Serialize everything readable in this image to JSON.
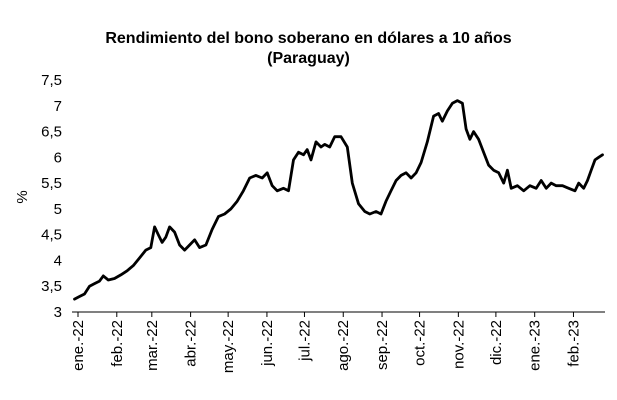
{
  "chart_data": {
    "type": "line",
    "title": "Rendimiento del bono soberano en dólares a 10 años",
    "subtitle": "(Paraguay)",
    "ylabel": "%",
    "ylim": [
      3,
      7.5
    ],
    "yticks": [
      "3",
      "3,5",
      "4",
      "4,5",
      "5",
      "5,5",
      "6",
      "6,5",
      "7",
      "7,5"
    ],
    "xtick_labels": [
      "ene.-22",
      "feb.-22",
      "mar.-22",
      "abr.-22",
      "may.-22",
      "jun.-22",
      "jul.-22",
      "ago.-22",
      "sep.-22",
      "oct.-22",
      "nov.-22",
      "dic.-22",
      "ene.-23",
      "feb.-23"
    ],
    "xlim": [
      "2022-01-01",
      "2023-03-03"
    ],
    "grid": false,
    "legend": "none",
    "series": [
      {
        "color": "#000000",
        "points": [
          [
            "2022-01-03",
            3.25
          ],
          [
            "2022-01-07",
            3.3
          ],
          [
            "2022-01-11",
            3.35
          ],
          [
            "2022-01-15",
            3.5
          ],
          [
            "2022-01-19",
            3.55
          ],
          [
            "2022-01-23",
            3.6
          ],
          [
            "2022-01-26",
            3.7
          ],
          [
            "2022-01-30",
            3.62
          ],
          [
            "2022-02-04",
            3.65
          ],
          [
            "2022-02-09",
            3.72
          ],
          [
            "2022-02-14",
            3.8
          ],
          [
            "2022-02-19",
            3.9
          ],
          [
            "2022-02-24",
            4.05
          ],
          [
            "2022-03-01",
            4.2
          ],
          [
            "2022-03-05",
            4.25
          ],
          [
            "2022-03-08",
            4.65
          ],
          [
            "2022-03-11",
            4.5
          ],
          [
            "2022-03-14",
            4.35
          ],
          [
            "2022-03-17",
            4.45
          ],
          [
            "2022-03-20",
            4.65
          ],
          [
            "2022-03-24",
            4.55
          ],
          [
            "2022-03-28",
            4.3
          ],
          [
            "2022-04-01",
            4.2
          ],
          [
            "2022-04-05",
            4.3
          ],
          [
            "2022-04-09",
            4.4
          ],
          [
            "2022-04-13",
            4.25
          ],
          [
            "2022-04-18",
            4.3
          ],
          [
            "2022-04-23",
            4.6
          ],
          [
            "2022-04-28",
            4.85
          ],
          [
            "2022-05-03",
            4.9
          ],
          [
            "2022-05-08",
            5.0
          ],
          [
            "2022-05-13",
            5.15
          ],
          [
            "2022-05-18",
            5.35
          ],
          [
            "2022-05-23",
            5.6
          ],
          [
            "2022-05-28",
            5.65
          ],
          [
            "2022-06-02",
            5.6
          ],
          [
            "2022-06-06",
            5.7
          ],
          [
            "2022-06-10",
            5.45
          ],
          [
            "2022-06-14",
            5.35
          ],
          [
            "2022-06-19",
            5.4
          ],
          [
            "2022-06-23",
            5.35
          ],
          [
            "2022-06-27",
            5.95
          ],
          [
            "2022-07-01",
            6.1
          ],
          [
            "2022-07-05",
            6.05
          ],
          [
            "2022-07-08",
            6.15
          ],
          [
            "2022-07-11",
            5.95
          ],
          [
            "2022-07-15",
            6.3
          ],
          [
            "2022-07-19",
            6.2
          ],
          [
            "2022-07-22",
            6.25
          ],
          [
            "2022-07-26",
            6.2
          ],
          [
            "2022-07-30",
            6.4
          ],
          [
            "2022-08-04",
            6.4
          ],
          [
            "2022-08-09",
            6.2
          ],
          [
            "2022-08-13",
            5.5
          ],
          [
            "2022-08-18",
            5.1
          ],
          [
            "2022-08-23",
            4.95
          ],
          [
            "2022-08-27",
            4.9
          ],
          [
            "2022-09-01",
            4.95
          ],
          [
            "2022-09-05",
            4.9
          ],
          [
            "2022-09-09",
            5.15
          ],
          [
            "2022-09-13",
            5.35
          ],
          [
            "2022-09-17",
            5.55
          ],
          [
            "2022-09-21",
            5.65
          ],
          [
            "2022-09-25",
            5.7
          ],
          [
            "2022-09-29",
            5.6
          ],
          [
            "2022-10-03",
            5.7
          ],
          [
            "2022-10-07",
            5.9
          ],
          [
            "2022-10-12",
            6.3
          ],
          [
            "2022-10-17",
            6.8
          ],
          [
            "2022-10-21",
            6.85
          ],
          [
            "2022-10-24",
            6.7
          ],
          [
            "2022-10-28",
            6.9
          ],
          [
            "2022-11-01",
            7.05
          ],
          [
            "2022-11-05",
            7.1
          ],
          [
            "2022-11-09",
            7.05
          ],
          [
            "2022-11-12",
            6.55
          ],
          [
            "2022-11-15",
            6.35
          ],
          [
            "2022-11-18",
            6.5
          ],
          [
            "2022-11-22",
            6.35
          ],
          [
            "2022-11-26",
            6.1
          ],
          [
            "2022-11-30",
            5.85
          ],
          [
            "2022-12-04",
            5.75
          ],
          [
            "2022-12-08",
            5.7
          ],
          [
            "2022-12-12",
            5.5
          ],
          [
            "2022-12-15",
            5.75
          ],
          [
            "2022-12-18",
            5.4
          ],
          [
            "2022-12-23",
            5.45
          ],
          [
            "2022-12-28",
            5.35
          ],
          [
            "2023-01-02",
            5.45
          ],
          [
            "2023-01-07",
            5.4
          ],
          [
            "2023-01-11",
            5.55
          ],
          [
            "2023-01-15",
            5.4
          ],
          [
            "2023-01-19",
            5.5
          ],
          [
            "2023-01-23",
            5.45
          ],
          [
            "2023-01-28",
            5.45
          ],
          [
            "2023-02-02",
            5.4
          ],
          [
            "2023-02-07",
            5.35
          ],
          [
            "2023-02-10",
            5.5
          ],
          [
            "2023-02-14",
            5.4
          ],
          [
            "2023-02-17",
            5.55
          ],
          [
            "2023-02-20",
            5.75
          ],
          [
            "2023-02-23",
            5.95
          ],
          [
            "2023-02-26",
            6.0
          ],
          [
            "2023-03-01",
            6.05
          ]
        ]
      }
    ]
  }
}
